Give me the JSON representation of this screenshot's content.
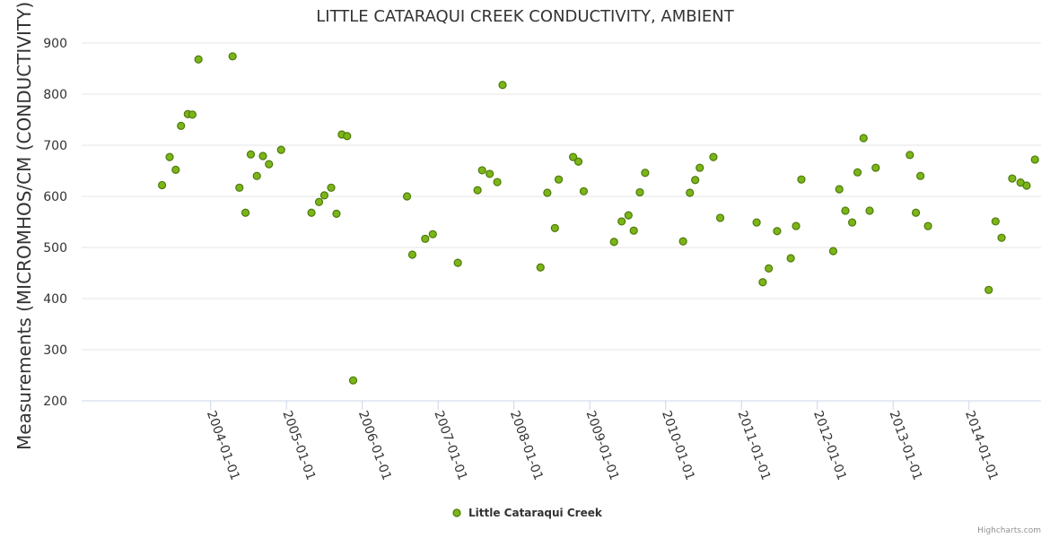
{
  "chart_data": {
    "type": "scatter",
    "title": "LITTLE CATARAQUI CREEK CONDUCTIVITY, AMBIENT",
    "xlabel": "",
    "ylabel": "Measurements (MICROMHOS/CM (CONDUCTIVITY))",
    "ylim": [
      200,
      900
    ],
    "yticks": [
      200,
      300,
      400,
      500,
      600,
      700,
      800,
      900
    ],
    "xlim": [
      2002.3,
      2014.95
    ],
    "xticks": [
      {
        "value": 2004.0,
        "label": "2004-01-01"
      },
      {
        "value": 2005.0,
        "label": "2005-01-01"
      },
      {
        "value": 2006.0,
        "label": "2006-01-01"
      },
      {
        "value": 2007.0,
        "label": "2007-01-01"
      },
      {
        "value": 2008.0,
        "label": "2008-01-01"
      },
      {
        "value": 2009.0,
        "label": "2009-01-01"
      },
      {
        "value": 2010.0,
        "label": "2010-01-01"
      },
      {
        "value": 2011.0,
        "label": "2011-01-01"
      },
      {
        "value": 2012.0,
        "label": "2012-01-01"
      },
      {
        "value": 2013.0,
        "label": "2013-01-01"
      },
      {
        "value": 2014.0,
        "label": "2014-01-01"
      }
    ],
    "grid": true,
    "legend": "bottom-center",
    "series": [
      {
        "name": "Little Cataraqui Creek",
        "color": "#7cb518",
        "points": [
          [
            2003.36,
            622
          ],
          [
            2003.46,
            677
          ],
          [
            2003.54,
            652
          ],
          [
            2003.61,
            738
          ],
          [
            2003.7,
            761
          ],
          [
            2003.76,
            760
          ],
          [
            2003.84,
            868
          ],
          [
            2004.29,
            874
          ],
          [
            2004.38,
            617
          ],
          [
            2004.46,
            568
          ],
          [
            2004.53,
            682
          ],
          [
            2004.61,
            640
          ],
          [
            2004.69,
            679
          ],
          [
            2004.77,
            663
          ],
          [
            2004.93,
            691
          ],
          [
            2005.33,
            568
          ],
          [
            2005.43,
            589
          ],
          [
            2005.5,
            602
          ],
          [
            2005.59,
            617
          ],
          [
            2005.66,
            566
          ],
          [
            2005.73,
            721
          ],
          [
            2005.8,
            718
          ],
          [
            2005.88,
            240
          ],
          [
            2006.59,
            600
          ],
          [
            2006.66,
            486
          ],
          [
            2006.83,
            517
          ],
          [
            2006.93,
            526
          ],
          [
            2007.26,
            470
          ],
          [
            2007.52,
            612
          ],
          [
            2007.58,
            651
          ],
          [
            2007.68,
            644
          ],
          [
            2007.78,
            628
          ],
          [
            2007.85,
            818
          ],
          [
            2008.35,
            461
          ],
          [
            2008.44,
            607
          ],
          [
            2008.54,
            538
          ],
          [
            2008.59,
            633
          ],
          [
            2008.78,
            677
          ],
          [
            2008.85,
            668
          ],
          [
            2008.92,
            610
          ],
          [
            2009.32,
            511
          ],
          [
            2009.42,
            551
          ],
          [
            2009.51,
            563
          ],
          [
            2009.58,
            533
          ],
          [
            2009.66,
            608
          ],
          [
            2009.73,
            646
          ],
          [
            2010.23,
            512
          ],
          [
            2010.32,
            607
          ],
          [
            2010.39,
            632
          ],
          [
            2010.45,
            656
          ],
          [
            2010.63,
            677
          ],
          [
            2010.72,
            558
          ],
          [
            2011.2,
            549
          ],
          [
            2011.28,
            432
          ],
          [
            2011.36,
            459
          ],
          [
            2011.47,
            532
          ],
          [
            2011.65,
            479
          ],
          [
            2011.72,
            542
          ],
          [
            2011.79,
            633
          ],
          [
            2012.21,
            493
          ],
          [
            2012.29,
            614
          ],
          [
            2012.37,
            572
          ],
          [
            2012.46,
            549
          ],
          [
            2012.53,
            647
          ],
          [
            2012.61,
            714
          ],
          [
            2012.69,
            572
          ],
          [
            2012.77,
            656
          ],
          [
            2013.22,
            681
          ],
          [
            2013.3,
            568
          ],
          [
            2013.36,
            640
          ],
          [
            2013.46,
            542
          ],
          [
            2014.26,
            417
          ],
          [
            2014.35,
            551
          ],
          [
            2014.43,
            519
          ],
          [
            2014.57,
            635
          ],
          [
            2014.68,
            627
          ],
          [
            2014.76,
            621
          ],
          [
            2014.87,
            672
          ]
        ]
      }
    ]
  },
  "credits": "Highcharts.com"
}
